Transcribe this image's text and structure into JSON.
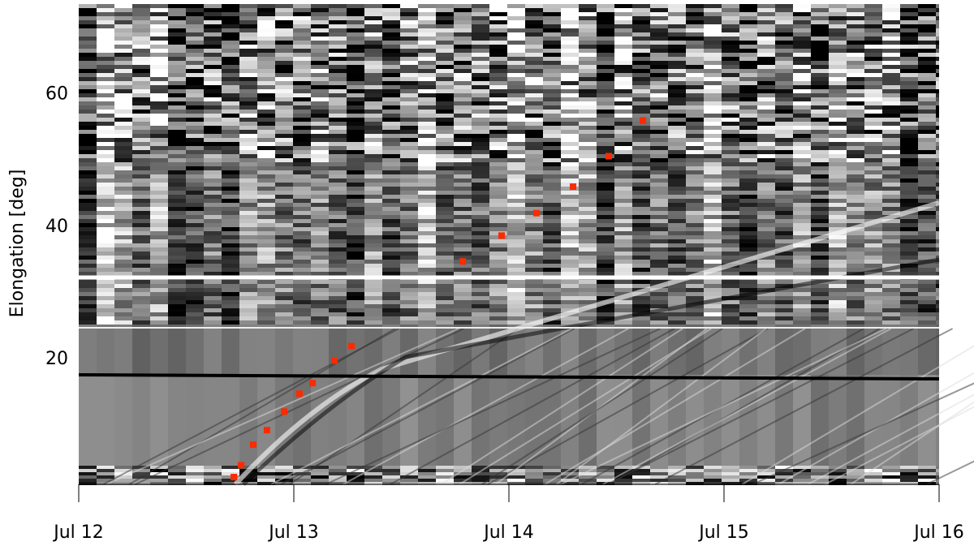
{
  "chart_data": {
    "type": "scatter",
    "y_label": "Elongation [deg]",
    "x": [
      0.721,
      0.755,
      0.811,
      0.875,
      0.955,
      1.026,
      1.087,
      1.189,
      1.268,
      1.785,
      1.966,
      2.128,
      2.298,
      2.464,
      2.623
    ],
    "values": [
      2.2,
      4.0,
      7.1,
      9.3,
      12.1,
      14.8,
      16.4,
      19.8,
      22.0,
      34.8,
      38.7,
      42.1,
      46.1,
      50.7,
      56.1
    ],
    "color": "#ff2a00",
    "xlim": [
      0,
      4
    ],
    "ylim": [
      1.1,
      73.7
    ],
    "xticks": [
      {
        "value": 0,
        "label": "Jul 12"
      },
      {
        "value": 1,
        "label": "Jul 13"
      },
      {
        "value": 2,
        "label": "Jul 14"
      },
      {
        "value": 3,
        "label": "Jul 15"
      },
      {
        "value": 4,
        "label": "Jul 16"
      }
    ],
    "yticks": [
      20,
      40,
      60
    ]
  }
}
